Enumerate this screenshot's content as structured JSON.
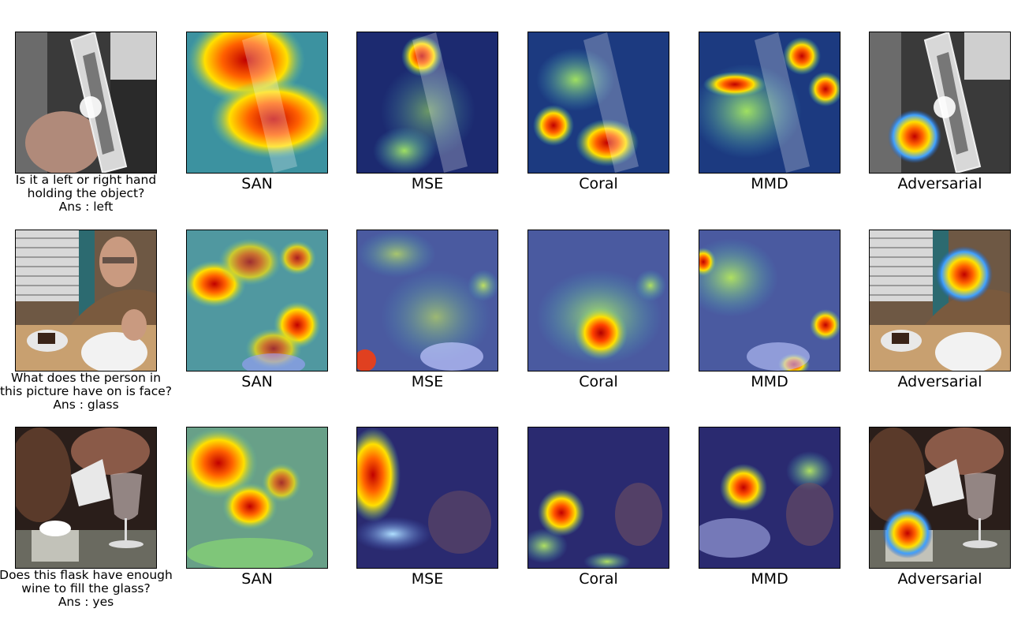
{
  "rows": [
    {
      "question_line1": "Is it a left or right hand",
      "question_line2": "holding the object?",
      "answer": "Ans : left",
      "labels": [
        "SAN",
        "MSE",
        "Coral",
        "MMD",
        "Adversarial"
      ]
    },
    {
      "question_line1": "What does the person in",
      "question_line2": "this picture have on is face?",
      "answer": "Ans : glass",
      "labels": [
        "SAN",
        "MSE",
        "Coral",
        "MMD",
        "Adversarial"
      ]
    },
    {
      "question_line1": "Does this flask have enough",
      "question_line2": "wine to fill the glass?",
      "answer": "Ans : yes",
      "labels": [
        "SAN",
        "MSE",
        "Coral",
        "MMD",
        "Adversarial"
      ]
    }
  ]
}
